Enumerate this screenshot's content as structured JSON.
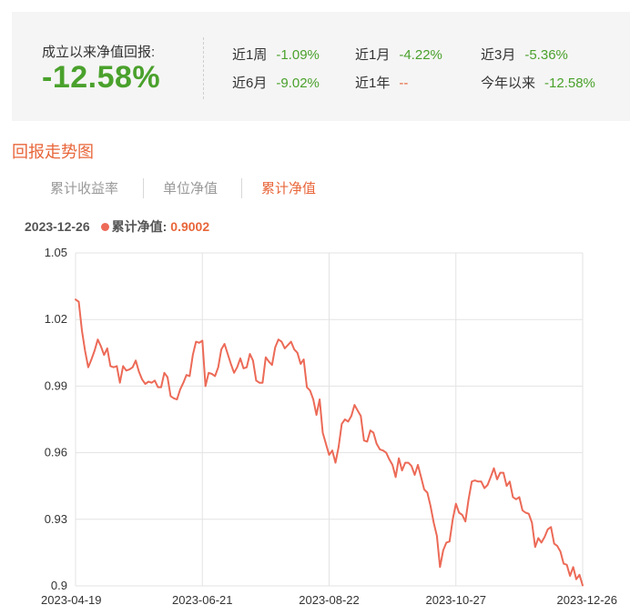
{
  "summary": {
    "total_label": "成立以来净值回报:",
    "total_value": "-12.58%",
    "periods": [
      {
        "label": "近1周",
        "value": "-1.09%"
      },
      {
        "label": "近1月",
        "value": "-4.22%"
      },
      {
        "label": "近3月",
        "value": "-5.36%"
      },
      {
        "label": "近6月",
        "value": "-9.02%"
      },
      {
        "label": "近1年",
        "value": "--"
      },
      {
        "label": "今年以来",
        "value": "-12.58%"
      }
    ]
  },
  "section_title": "回报走势图",
  "tabs": [
    {
      "label": "累计收益率",
      "active": false
    },
    {
      "label": "单位净值",
      "active": false
    },
    {
      "label": "累计净值",
      "active": true
    }
  ],
  "readout": {
    "date": "2023-12-26",
    "label": "累计净值:",
    "value": "0.9002"
  },
  "colors": {
    "positive": "#4aa12c",
    "negative_dash": "#e8663a",
    "accent": "#e8663a",
    "line": "#ec6a57",
    "grid": "#e3e3e3",
    "panel": "#f5f5f5"
  },
  "chart_data": {
    "type": "line",
    "title": "",
    "xlabel": "",
    "ylabel": "",
    "ylim": [
      0.9,
      1.05
    ],
    "y_ticks": [
      "1.05",
      "1.02",
      "0.99",
      "0.96",
      "0.93",
      "0.9"
    ],
    "x_ticks": [
      "2023-04-19",
      "2023-06-21",
      "2023-08-22",
      "2023-10-27",
      "2023-12-26"
    ],
    "grid": true,
    "series": [
      {
        "values": [
          1.029,
          1.028,
          1.015,
          1.006,
          0.9985,
          1.002,
          1.006,
          1.011,
          1.008,
          1.004,
          1.007,
          0.999,
          0.9985,
          0.999,
          0.9915,
          0.999,
          0.997,
          0.9975,
          0.9985,
          1.0015,
          0.9965,
          0.993,
          0.991,
          0.992,
          0.9915,
          0.9925,
          0.9895,
          0.9895,
          0.996,
          0.994,
          0.9855,
          0.9845,
          0.984,
          0.9885,
          0.9915,
          0.995,
          0.9945,
          1.004,
          1.01,
          1.0095,
          1.0105,
          0.99,
          0.996,
          0.9955,
          0.9945,
          0.9985,
          1.0065,
          1.009,
          1.0045,
          1.0,
          0.996,
          0.9985,
          1.0025,
          0.998,
          0.9985,
          1.0045,
          1.0015,
          0.9925,
          0.9915,
          0.9915,
          1.003,
          1.001,
          0.9995,
          1.0075,
          1.011,
          1.01,
          1.007,
          1.0085,
          1.01,
          1.0065,
          1.005,
          1.0,
          1.002,
          0.9895,
          0.988,
          0.984,
          0.977,
          0.984,
          0.969,
          0.964,
          0.959,
          0.961,
          0.9555,
          0.9625,
          0.973,
          0.975,
          0.974,
          0.9765,
          0.9815,
          0.979,
          0.9765,
          0.9655,
          0.965,
          0.97,
          0.969,
          0.964,
          0.9615,
          0.961,
          0.96,
          0.957,
          0.9545,
          0.949,
          0.9575,
          0.952,
          0.9555,
          0.9555,
          0.954,
          0.95,
          0.9545,
          0.949,
          0.9435,
          0.942,
          0.936,
          0.9285,
          0.9225,
          0.9085,
          0.916,
          0.9195,
          0.92,
          0.93,
          0.937,
          0.933,
          0.932,
          0.929,
          0.939,
          0.947,
          0.9475,
          0.947,
          0.947,
          0.944,
          0.9455,
          0.949,
          0.953,
          0.948,
          0.951,
          0.951,
          0.945,
          0.947,
          0.94,
          0.939,
          0.94,
          0.934,
          0.933,
          0.9325,
          0.9285,
          0.9175,
          0.9215,
          0.9195,
          0.922,
          0.9255,
          0.9265,
          0.919,
          0.918,
          0.9155,
          0.91,
          0.9095,
          0.9045,
          0.9085,
          0.903,
          0.905,
          0.9002
        ]
      }
    ]
  }
}
